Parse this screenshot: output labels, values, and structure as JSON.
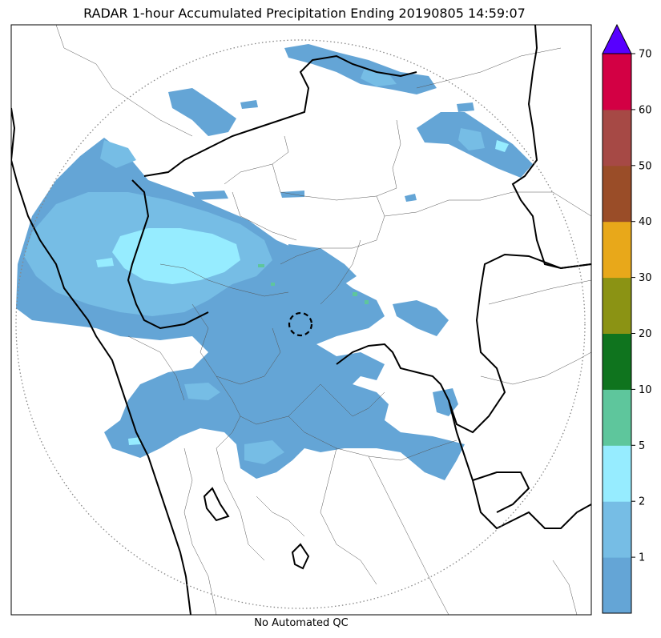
{
  "title": "RADAR 1-hour Accumulated Precipitation Ending 20190805 14:59:07",
  "footer": "No Automated QC",
  "colorbar": {
    "ticks": [
      "1",
      "2",
      "5",
      "10",
      "20",
      "30",
      "40",
      "50",
      "60",
      "70"
    ],
    "colors": [
      "#64a5d6",
      "#76bde5",
      "#96ecff",
      "#5ec69c",
      "#0f741e",
      "#8b9314",
      "#e8a81a",
      "#9a4d28",
      "#a64945",
      "#d30044"
    ],
    "extend_color": "#5700ff",
    "extend": "max"
  },
  "map": {
    "range_ring": "dotted",
    "radar_site_marker": "dashed-circle",
    "colors": {
      "border_major": "#000000",
      "border_minor": "#555555",
      "ring": "#888888"
    }
  }
}
